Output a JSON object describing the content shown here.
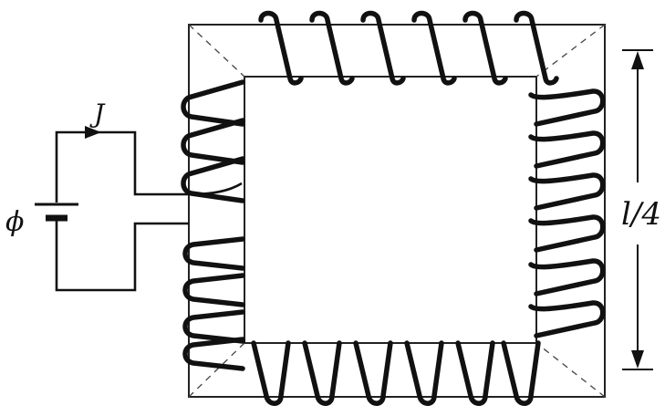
{
  "labels": {
    "current": "J",
    "emf": "ϕ",
    "side_length": "l/4"
  },
  "colors": {
    "ink": "#111111",
    "background": "#ffffff"
  },
  "coil_turns": {
    "top": 6,
    "bottom": 6,
    "right": 6,
    "left_upper": 3,
    "left_lower": 4
  }
}
